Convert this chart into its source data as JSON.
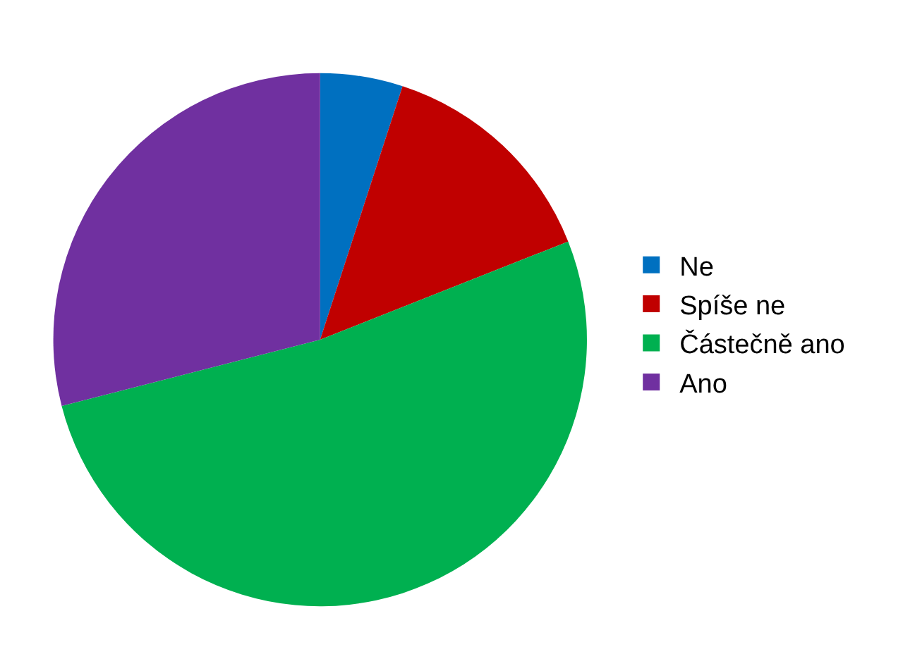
{
  "chart_data": {
    "type": "pie",
    "categories": [
      "Ne",
      "Spíše ne",
      "Částečně ano",
      "Ano"
    ],
    "values": [
      5,
      14,
      52,
      29
    ],
    "colors": [
      "#0070c0",
      "#c00000",
      "#00b050",
      "#7030a0"
    ],
    "legend": "right"
  }
}
